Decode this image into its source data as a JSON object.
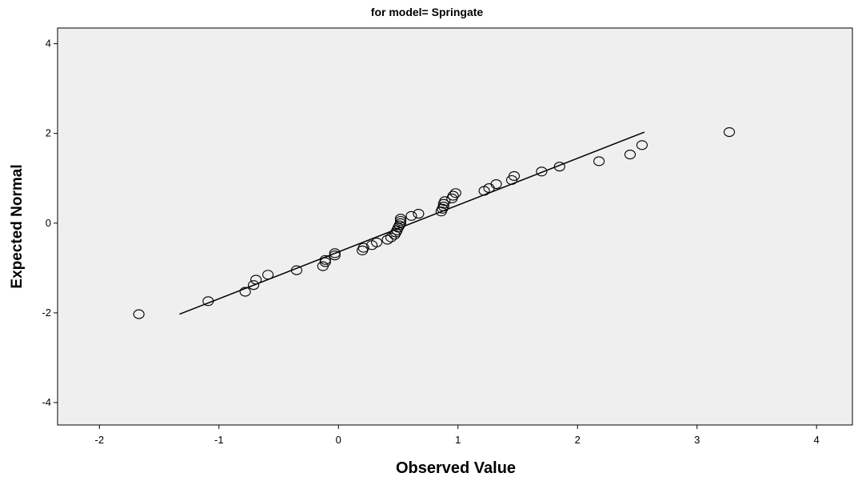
{
  "chart_data": {
    "type": "scatter",
    "title": "for model= Springate",
    "xlabel": "Observed Value",
    "ylabel": "Expected Normal",
    "xlim": [
      -2.35,
      4.3
    ],
    "ylim": [
      -4.5,
      4.35
    ],
    "xticks": [
      "-2",
      "-1",
      "0",
      "1",
      "2",
      "3",
      "4"
    ],
    "yticks": [
      "4",
      "2",
      "0",
      "-2",
      "-4"
    ],
    "xtick_values": [
      -2,
      -1,
      0,
      1,
      2,
      3,
      4
    ],
    "ytick_values": [
      4,
      2,
      0,
      -2,
      -4
    ],
    "grid": false,
    "background": "#efefef",
    "line_color": "#000000",
    "reference_line": {
      "x": [
        -1.33,
        2.56
      ],
      "y": [
        -2.03,
        2.03
      ]
    },
    "points": [
      [
        -1.67,
        -2.03
      ],
      [
        -1.09,
        -1.74
      ],
      [
        -0.78,
        -1.53
      ],
      [
        -0.71,
        -1.38
      ],
      [
        -0.69,
        -1.26
      ],
      [
        -0.59,
        -1.15
      ],
      [
        -0.35,
        -1.05
      ],
      [
        -0.13,
        -0.96
      ],
      [
        -0.11,
        -0.87
      ],
      [
        -0.11,
        -0.82
      ],
      [
        -0.03,
        -0.72
      ],
      [
        -0.03,
        -0.67
      ],
      [
        0.2,
        -0.61
      ],
      [
        0.21,
        -0.55
      ],
      [
        0.28,
        -0.49
      ],
      [
        0.32,
        -0.43
      ],
      [
        0.41,
        -0.37
      ],
      [
        0.44,
        -0.32
      ],
      [
        0.47,
        -0.26
      ],
      [
        0.48,
        -0.21
      ],
      [
        0.49,
        -0.16
      ],
      [
        0.5,
        -0.1
      ],
      [
        0.51,
        -0.05
      ],
      [
        0.52,
        0.0
      ],
      [
        0.52,
        0.05
      ],
      [
        0.52,
        0.1
      ],
      [
        0.61,
        0.16
      ],
      [
        0.67,
        0.21
      ],
      [
        0.86,
        0.26
      ],
      [
        0.87,
        0.32
      ],
      [
        0.88,
        0.37
      ],
      [
        0.88,
        0.43
      ],
      [
        0.89,
        0.49
      ],
      [
        0.95,
        0.55
      ],
      [
        0.96,
        0.61
      ],
      [
        0.98,
        0.67
      ],
      [
        1.22,
        0.72
      ],
      [
        1.26,
        0.78
      ],
      [
        1.32,
        0.87
      ],
      [
        1.45,
        0.96
      ],
      [
        1.47,
        1.05
      ],
      [
        1.7,
        1.15
      ],
      [
        1.85,
        1.26
      ],
      [
        2.18,
        1.38
      ],
      [
        2.44,
        1.53
      ],
      [
        2.54,
        1.74
      ],
      [
        3.27,
        2.03
      ]
    ]
  }
}
